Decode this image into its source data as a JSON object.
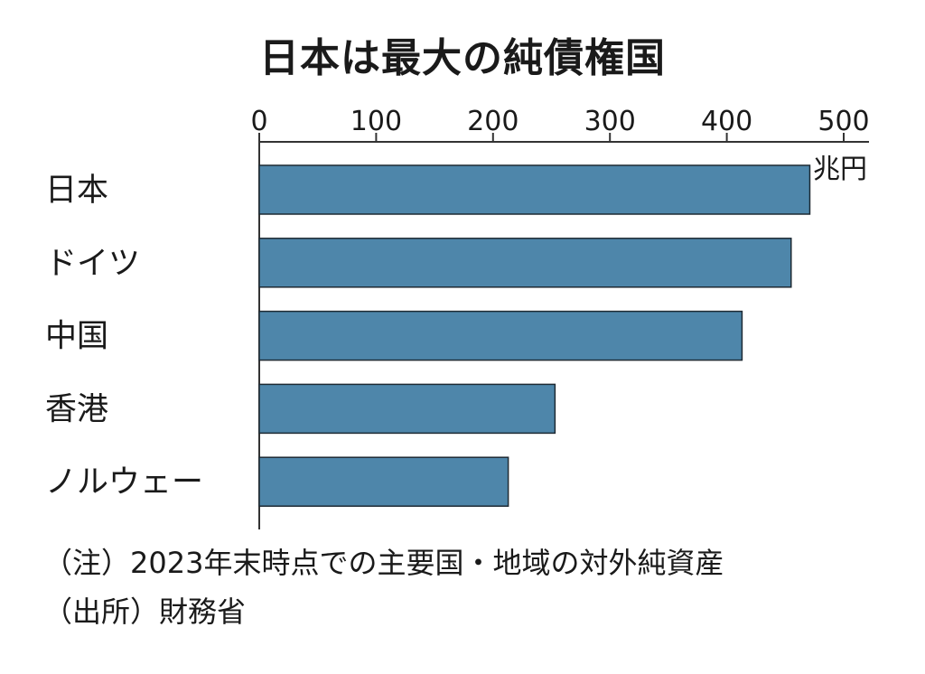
{
  "chart_data": {
    "type": "bar",
    "orientation": "horizontal",
    "title": "日本は最大の純債権国",
    "unit": "兆円",
    "categories": [
      "日本",
      "ドイツ",
      "中国",
      "香港",
      "ノルウェー"
    ],
    "values": [
      471,
      455,
      413,
      253,
      213
    ],
    "xlim": [
      0,
      500
    ],
    "xticks": [
      "0",
      "100",
      "200",
      "300",
      "400",
      "500"
    ],
    "xaxis_position": "top",
    "grid": false,
    "bar_color": "#4e86aa",
    "bar_stroke": "#1e2a33"
  },
  "notes": {
    "note": "（注）2023年末時点での主要国・地域の対外純資産",
    "source": "（出所）財務省"
  }
}
